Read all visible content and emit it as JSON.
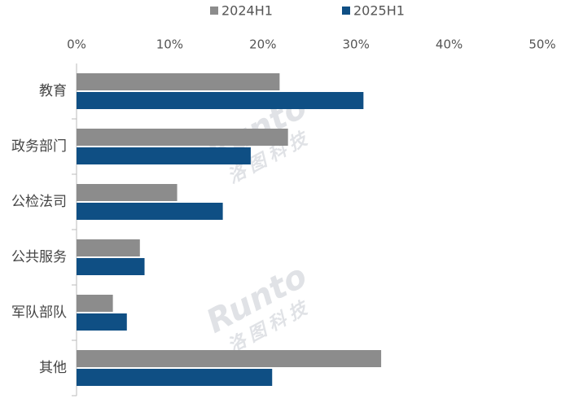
{
  "chart_data": {
    "type": "barh",
    "categories": [
      "教育",
      "政务部门",
      "公检法司",
      "公共服务",
      "军队部队",
      "其他"
    ],
    "series": [
      {
        "name": "2024H1",
        "color": "#8c8c8c",
        "values": [
          21.8,
          22.7,
          10.8,
          6.8,
          3.9,
          32.7
        ]
      },
      {
        "name": "2025H1",
        "color": "#0f4f84",
        "values": [
          30.8,
          18.7,
          15.7,
          7.3,
          5.4,
          21.0
        ]
      }
    ],
    "xlim": [
      0,
      50
    ],
    "xticks": [
      {
        "value": 0,
        "label": "0%"
      },
      {
        "value": 10,
        "label": "10%"
      },
      {
        "value": 20,
        "label": "20%"
      },
      {
        "value": 30,
        "label": "30%"
      },
      {
        "value": 40,
        "label": "40%"
      },
      {
        "value": 50,
        "label": "50%"
      }
    ],
    "grid": false,
    "legend": "top",
    "watermark": {
      "brand": "Runto",
      "name": "洛图科技"
    }
  }
}
